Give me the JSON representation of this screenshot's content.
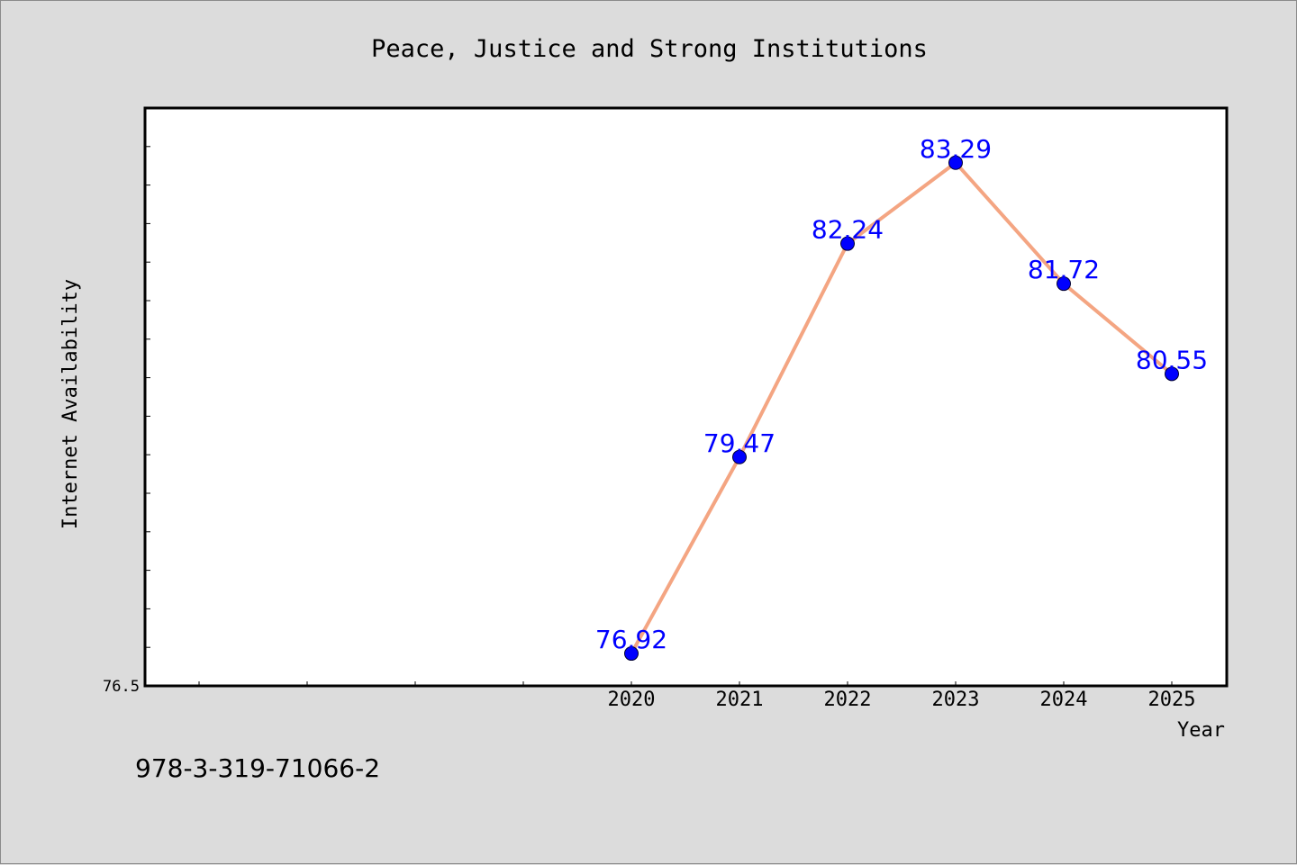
{
  "chart_data": {
    "type": "line",
    "title": "Peace, Justice and Strong Institutions",
    "xlabel": "Year",
    "ylabel": "Internet Availability",
    "categories": [
      "2020",
      "2021",
      "2022",
      "2023",
      "2024",
      "2025"
    ],
    "series": [
      {
        "values": [
          76.92,
          79.47,
          82.24,
          83.29,
          81.72,
          80.55
        ]
      }
    ],
    "data_labels": [
      "76.92",
      "79.47",
      "82.24",
      "83.29",
      "81.72",
      "80.55"
    ],
    "y_tick_labels": [
      "76.5"
    ],
    "ylim": [
      76.5,
      84.0
    ],
    "x_slots": 10,
    "x_first_category_slot": 4,
    "grid": false,
    "line_color": "#f4a582",
    "marker_color": "#0000ff",
    "label_color": "#0000ff",
    "plot_background": "#ffffff",
    "figure_background": "#dcdcdc"
  },
  "footer_text": "978-3-319-71066-2"
}
